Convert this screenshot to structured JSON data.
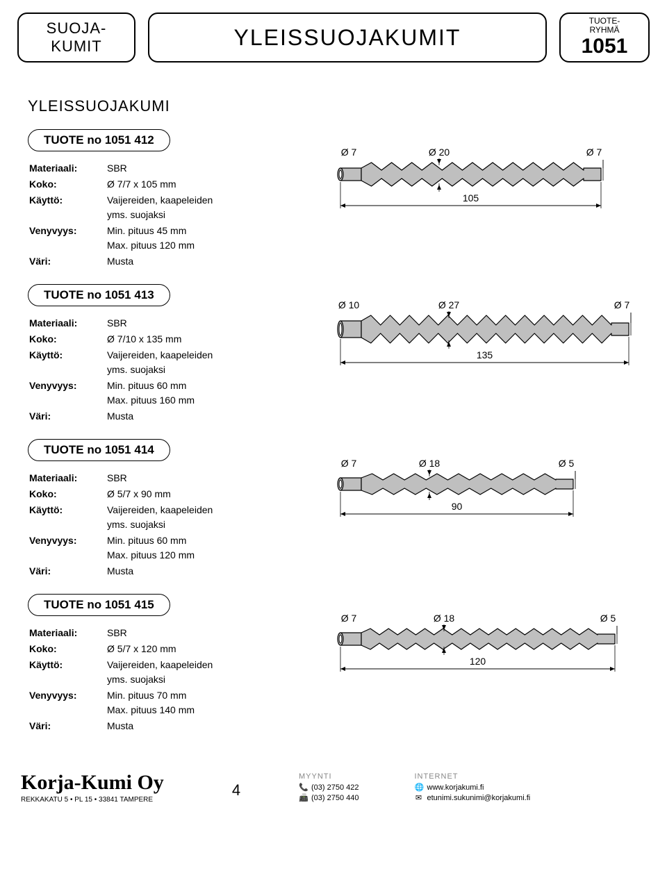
{
  "header": {
    "left_line1": "SUOJA-",
    "left_line2": "KUMIT",
    "center": "YLEISSUOJAKUMIT",
    "right_line1": "TUOTE-",
    "right_line2": "RYHMÄ",
    "right_big": "1051"
  },
  "section_title": "YLEISSUOJAKUMI",
  "labels": {
    "material": "Materiaali:",
    "size": "Koko:",
    "use": "Käyttö:",
    "stretch": "Venyvyys:",
    "color": "Väri:"
  },
  "products": [
    {
      "title": "TUOTE no  1051 412",
      "material": "SBR",
      "size": "Ø 7/7 x 105 mm",
      "use1": "Vaijereiden, kaapeleiden",
      "use2": "yms. suojaksi",
      "stretch1": "Min. pituus  45 mm",
      "stretch2": "Max. pituus 120 mm",
      "color": "Musta",
      "diagram": {
        "d_left": "Ø 7",
        "d_mid": "Ø 20",
        "d_right": "Ø 7",
        "len": "105",
        "ribs": 11,
        "max_r": 17,
        "body_w": 320,
        "left_d": 9,
        "right_d": 9
      }
    },
    {
      "title": "TUOTE no  1051 413",
      "material": "SBR",
      "size": "Ø 7/10 x 135 mm",
      "use1": "Vaijereiden, kaapeleiden",
      "use2": "yms. suojaksi",
      "stretch1": "Min. pituus  60 mm",
      "stretch2": "Max. pituus 160 mm",
      "color": "Musta",
      "diagram": {
        "d_left": "Ø 10",
        "d_mid": "Ø 27",
        "d_right": "Ø 7",
        "len": "135",
        "ribs": 13,
        "max_r": 20,
        "body_w": 360,
        "left_d": 12,
        "right_d": 9
      }
    },
    {
      "title": "TUOTE no  1051 414",
      "material": "SBR",
      "size": "Ø 5/7 x 90 mm",
      "use1": "Vaijereiden, kaapeleiden",
      "use2": "yms. suojaksi",
      "stretch1": "Min. pituus  60 mm",
      "stretch2": "Max. pituus 120 mm",
      "color": "Musta",
      "diagram": {
        "d_left": "Ø 7",
        "d_mid": "Ø 18",
        "d_right": "Ø 5",
        "len": "90",
        "ribs": 9,
        "max_r": 15,
        "body_w": 280,
        "left_d": 9,
        "right_d": 7
      }
    },
    {
      "title": "TUOTE no  1051 415",
      "material": "SBR",
      "size": "Ø 5/7 x 120 mm",
      "use1": "Vaijereiden, kaapeleiden",
      "use2": "yms. suojaksi",
      "stretch1": "Min. pituus  70 mm",
      "stretch2": "Max. pituus 140 mm",
      "color": "Musta",
      "diagram": {
        "d_left": "Ø 7",
        "d_mid": "Ø 18",
        "d_right": "Ø 5",
        "len": "120",
        "ribs": 13,
        "max_r": 15,
        "body_w": 340,
        "left_d": 9,
        "right_d": 7
      }
    }
  ],
  "footer": {
    "logo": "Korja-Kumi Oy",
    "address": "REKKAKATU 5 • PL 15 • 33841 TAMPERE",
    "page": "4",
    "sales_head": "MYYNTI",
    "phone": "(03) 2750 422",
    "fax": "(03) 2750 440",
    "net_head": "INTERNET",
    "web": "www.korjakumi.fi",
    "email": "etunimi.sukunimi@korjakumi.fi"
  },
  "colors": {
    "part_fill": "#bfbfbf",
    "stroke": "#000000",
    "dim_arrow": "#000000"
  }
}
